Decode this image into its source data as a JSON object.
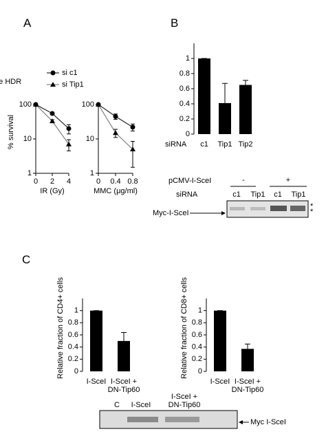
{
  "panel_labels": [
    "A",
    "B",
    "C"
  ],
  "chart_data": [
    {
      "type": "line",
      "xlabel": "IR (Gy)",
      "ylabel": "% survival",
      "yscale": "log",
      "legend": "top",
      "x": [
        0,
        2,
        4
      ],
      "xlim": [
        0,
        4
      ],
      "xticks": [
        0,
        2,
        4
      ],
      "ylim": [
        1,
        100
      ],
      "yticks": [
        1,
        10,
        100
      ],
      "series": [
        {
          "name": "si c1",
          "color": "#000000",
          "line_color": "#333333",
          "marker": "circle",
          "values": [
            100,
            55,
            20
          ],
          "errors": [
            0,
            4,
            6
          ]
        },
        {
          "name": "si Tip1",
          "color": "#000000",
          "line_color": "#888888",
          "marker": "triangle",
          "values": [
            100,
            33,
            7
          ],
          "errors": [
            0,
            3,
            2.5
          ]
        }
      ]
    },
    {
      "type": "line",
      "xlabel": "MMC (μg/ml)",
      "yscale": "log",
      "x": [
        0,
        0.4,
        0.8
      ],
      "xlim": [
        0,
        0.8
      ],
      "xticks": [
        0,
        0.4,
        0.8
      ],
      "ylim": [
        1,
        100
      ],
      "yticks": [
        1,
        10,
        100
      ],
      "series": [
        {
          "color": "#000000",
          "line_color": "#333333",
          "marker": "circle",
          "values": [
            100,
            45,
            22
          ],
          "errors": [
            0,
            8,
            5
          ]
        },
        {
          "color": "#000000",
          "line_color": "#888888",
          "marker": "triangle",
          "values": [
            100,
            15,
            5
          ],
          "errors": [
            0,
            4,
            3.5
          ]
        }
      ]
    },
    {
      "type": "bar",
      "xlabel": "siRNA",
      "ylabel": "relative HDR",
      "color": "#000000",
      "categories": [
        "c1",
        "Tip1",
        "Tip2"
      ],
      "values": [
        1,
        0.41,
        0.65
      ],
      "errors": [
        0,
        0.26,
        0.06
      ],
      "ylim": [
        0,
        1.2
      ],
      "yticks": [
        0,
        0.2,
        0.4,
        0.6,
        0.8,
        1
      ]
    },
    {
      "type": "bar",
      "ylabel": "Relative fraction of CD4+ cells",
      "color": "#000000",
      "categories": [
        "I-SceI",
        "I-SceI +\nDN-Tip60"
      ],
      "values": [
        1,
        0.5
      ],
      "errors": [
        0,
        0.14
      ],
      "ylim": [
        0,
        1.2
      ],
      "yticks": [
        0,
        0.2,
        0.4,
        0.6,
        0.8,
        1
      ]
    },
    {
      "type": "bar",
      "ylabel": "Relative fraction of CD8+ cells",
      "color": "#000000",
      "categories": [
        "I-SceI",
        "I-SceI +\nDN-Tip60"
      ],
      "values": [
        1,
        0.37
      ],
      "errors": [
        0,
        0.08
      ],
      "ylim": [
        0,
        1.2
      ],
      "yticks": [
        0,
        0.2,
        0.4,
        0.6,
        0.8,
        1
      ]
    }
  ],
  "blots": [
    {
      "rows": [
        {
          "label": "pCMV-I-SceI",
          "groups": [
            "-",
            "+"
          ]
        },
        {
          "label": "siRNA",
          "lanes": [
            "c1",
            "Tip1",
            "c1",
            "Tip1"
          ]
        }
      ],
      "band_label": "Myc-I-SceI",
      "markers": [
        "*",
        "*"
      ]
    },
    {
      "lanes": [
        "C",
        "I-SceI",
        "I-SceI +\nDN-Tip60"
      ],
      "band_label": "Myc I-SceI"
    }
  ]
}
